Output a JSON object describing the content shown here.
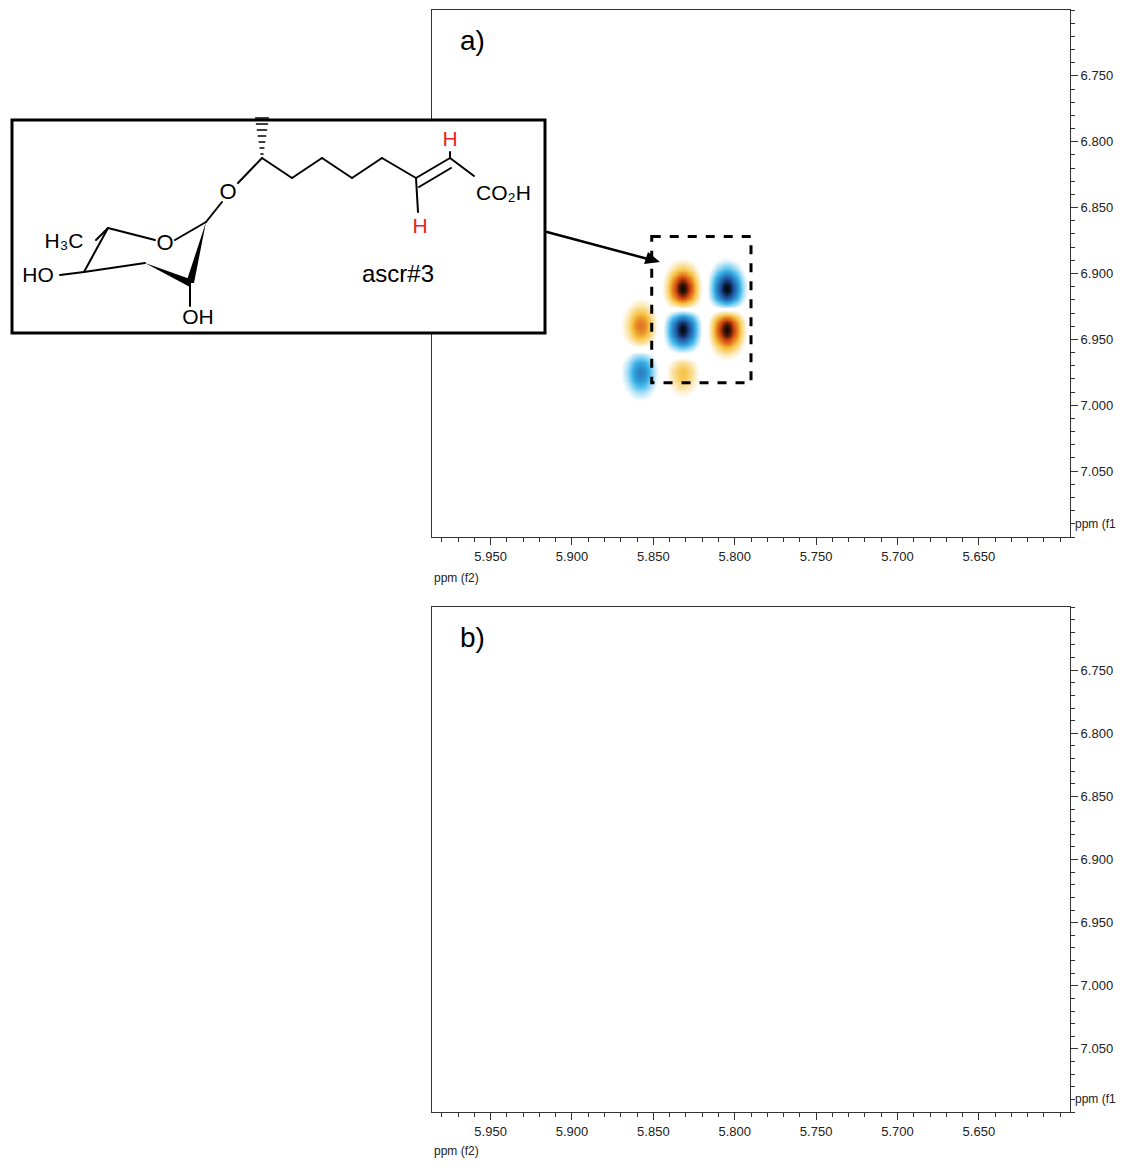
{
  "chart_data": [
    {
      "type": "heatmap",
      "label": "a)",
      "xlabel": "ppm (f2)",
      "ylabel": "ppm (f1",
      "xlim": [
        5.986,
        5.594
      ],
      "ylim": [
        7.1,
        6.7
      ],
      "xticks": [
        {
          "value": 5.95,
          "label": "5.950"
        },
        {
          "value": 5.9,
          "label": "5.900"
        },
        {
          "value": 5.85,
          "label": "5.850"
        },
        {
          "value": 5.8,
          "label": "5.800"
        },
        {
          "value": 5.75,
          "label": "5.750"
        },
        {
          "value": 5.7,
          "label": "5.700"
        },
        {
          "value": 5.65,
          "label": "5.650"
        }
      ],
      "yticks": [
        {
          "value": 6.75,
          "label": "6.750"
        },
        {
          "value": 6.8,
          "label": "6.800"
        },
        {
          "value": 6.85,
          "label": "6.850"
        },
        {
          "value": 6.9,
          "label": "6.900"
        },
        {
          "value": 6.95,
          "label": "6.950"
        },
        {
          "value": 7.0,
          "label": "7.000"
        },
        {
          "value": 7.05,
          "label": "7.050"
        }
      ],
      "zlim": [
        -1,
        1
      ],
      "peaks": [
        {
          "x": 5.832,
          "y": 6.912,
          "intensity": 1
        },
        {
          "x": 5.805,
          "y": 6.912,
          "intensity": -1
        },
        {
          "x": 5.832,
          "y": 6.942,
          "intensity": -1
        },
        {
          "x": 5.805,
          "y": 6.942,
          "intensity": 1
        },
        {
          "x": 5.858,
          "y": 6.94,
          "intensity": 0.6
        },
        {
          "x": 5.858,
          "y": 6.975,
          "intensity": -0.6
        },
        {
          "x": 5.832,
          "y": 6.975,
          "intensity": 0.4
        }
      ],
      "highlight": {
        "xlim": [
          5.851,
          5.79
        ],
        "ylim": [
          6.872,
          6.983
        ]
      }
    },
    {
      "type": "heatmap",
      "label": "b)",
      "xlabel": "ppm (f2)",
      "ylabel": "ppm (f1",
      "xlim": [
        5.986,
        5.594
      ],
      "ylim": [
        7.1,
        6.7
      ],
      "xticks": [
        {
          "value": 5.95,
          "label": "5.950"
        },
        {
          "value": 5.9,
          "label": "5.900"
        },
        {
          "value": 5.85,
          "label": "5.850"
        },
        {
          "value": 5.8,
          "label": "5.800"
        },
        {
          "value": 5.75,
          "label": "5.750"
        },
        {
          "value": 5.7,
          "label": "5.700"
        },
        {
          "value": 5.65,
          "label": "5.650"
        }
      ],
      "yticks": [
        {
          "value": 6.75,
          "label": "6.750"
        },
        {
          "value": 6.8,
          "label": "6.800"
        },
        {
          "value": 6.85,
          "label": "6.850"
        },
        {
          "value": 6.9,
          "label": "6.900"
        },
        {
          "value": 6.95,
          "label": "6.950"
        },
        {
          "value": 7.0,
          "label": "7.000"
        },
        {
          "value": 7.05,
          "label": "7.050"
        }
      ],
      "zlim": [
        -1,
        1
      ],
      "peaks": []
    }
  ],
  "structure": {
    "name": "ascr#3",
    "ring_oxygen": "O",
    "glycosidic_oxygen": "O",
    "methyl": "H₃C",
    "hydroxyl_4": "HO",
    "hydroxyl_2": "OH",
    "acid": "CO₂H",
    "alkene_h": [
      "H",
      "H"
    ],
    "alkene_h_color": "#e8261c"
  }
}
